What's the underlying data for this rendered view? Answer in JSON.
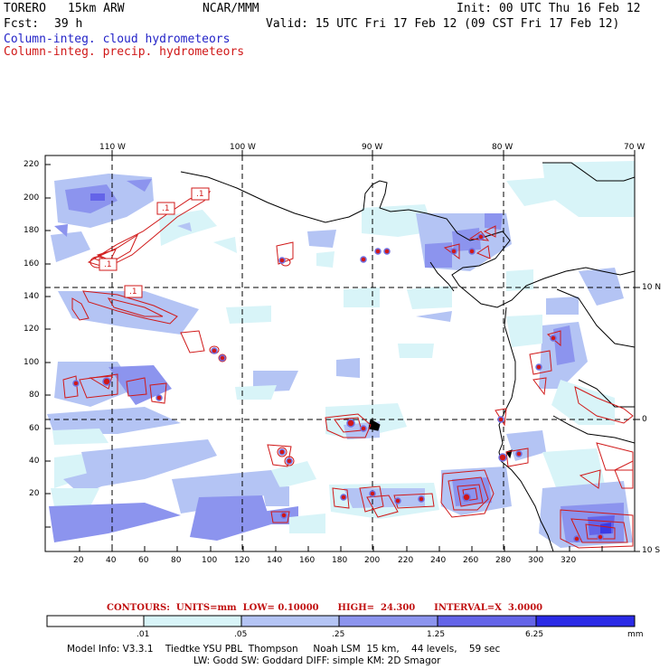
{
  "header": {
    "run_name": "TORERO",
    "resolution": "15km ARW",
    "org": "NCAR/MMM",
    "init": "Init: 00 UTC Thu 16 Feb 12",
    "fcst_label": "Fcst:",
    "fcst_value": "39 h",
    "valid": "Valid: 15 UTC Fri 17 Feb 12 (09 CST Fri 17 Feb 12)",
    "field1": "Column-integ. cloud hydrometeors",
    "field2": "Column-integ. precip. hydrometeors"
  },
  "axes": {
    "top_lon_labels": [
      "110 W",
      "100 W",
      "90 W",
      "80 W",
      "70 W"
    ],
    "right_lat_labels": [
      "10 N",
      "0",
      "10 S"
    ],
    "left_y_ticks": [
      "220",
      "200",
      "180",
      "160",
      "140",
      "120",
      "100",
      "80",
      "60",
      "40",
      "20"
    ],
    "bottom_x_ticks": [
      "20",
      "40",
      "60",
      "80",
      "100",
      "120",
      "140",
      "160",
      "180",
      "200",
      "220",
      "240",
      "260",
      "280",
      "300",
      "320"
    ]
  },
  "map_labels": [
    ".1",
    ".1",
    ".1",
    ".1"
  ],
  "contours": {
    "label": "CONTOURS:  UNITS=mm  LOW= 0.10000      HIGH=  24.300      INTERVAL=X  3.0000"
  },
  "colorbar": {
    "tick_labels": [
      ".01",
      ".05",
      ".25",
      "1.25",
      "6.25"
    ],
    "unit": "mm",
    "colors": [
      "#ffffff",
      "#d8f4f8",
      "#b4c4f4",
      "#8c94ee",
      "#6464e8",
      "#3a3ae6",
      "#1c1ce6"
    ]
  },
  "model_info": {
    "line1": "Model Info: V3.3.1    Tiedtke YSU PBL  Thompson     Noah LSM  15 km,    44 levels,    59 sec",
    "line2": "LW: Godd SW: Goddard DIFF: simple KM: 2D Smagor"
  }
}
